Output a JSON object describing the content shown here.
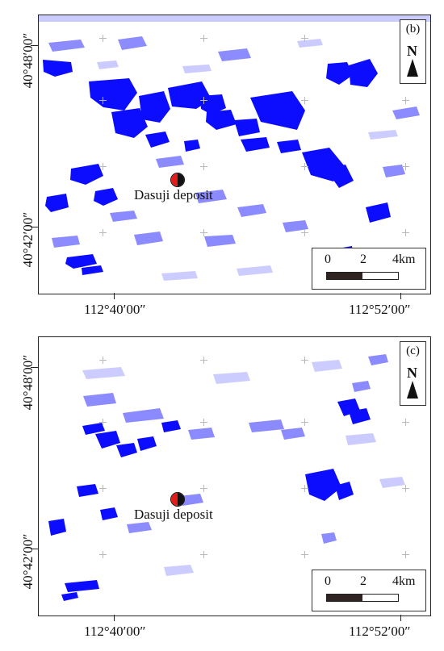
{
  "panels": [
    {
      "id": "(b)",
      "north_label": "N",
      "deposit_label": "Dasuji deposit",
      "lat_labels": [
        "40°48′00″",
        "40°42′00″"
      ],
      "lon_labels": [
        "112°40′00″",
        "112°52′00″"
      ],
      "scale_labels": [
        "0",
        "2",
        "4km"
      ]
    },
    {
      "id": "(c)",
      "north_label": "N",
      "deposit_label": "Dasuji deposit",
      "lat_labels": [
        "40°48′00″",
        "40°42′00″"
      ],
      "lon_labels": [
        "112°40′00″",
        "112°52′00″"
      ],
      "scale_labels": [
        "0",
        "2",
        "4km"
      ]
    }
  ],
  "colors": {
    "feature_blue": "#0000ff",
    "deposit_red": "#e21b1b",
    "deposit_black": "#111111"
  }
}
